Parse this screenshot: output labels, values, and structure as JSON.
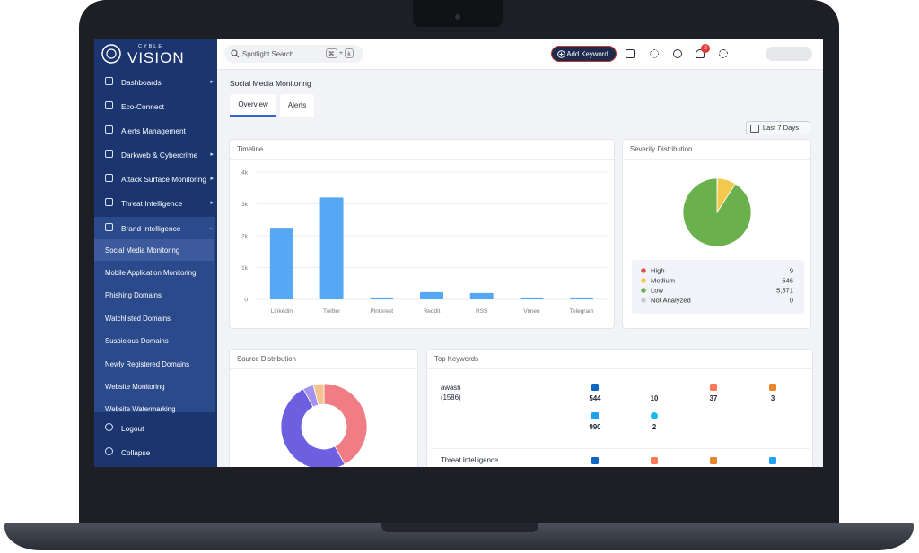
{
  "sidebar": {
    "brand_top": "CYBLE",
    "brand": "VISION",
    "menu": [
      {
        "label": "Dashboards",
        "submenu": true
      },
      {
        "label": "Eco-Connect",
        "submenu": false
      },
      {
        "label": "Alerts Management",
        "submenu": false
      },
      {
        "label": "Darkweb & Cybercrime",
        "submenu": true
      },
      {
        "label": "Attack Surface Monitoring",
        "submenu": true
      },
      {
        "label": "Threat Intelligence",
        "submenu": true
      },
      {
        "label": "Brand Intelligence",
        "submenu": true
      }
    ],
    "submenu": [
      "Social Media Monitoring",
      "Mobile Application Monitoring",
      "Phishing Domains",
      "Watchlisted Domains",
      "Suspicious Domains",
      "Newly Registered Domains",
      "Website Monitoring",
      "Website Watermarking"
    ],
    "footer": [
      "Logout",
      "Collapse"
    ]
  },
  "topbar": {
    "search": "Spotlight Search",
    "shortcut": [
      "⌘",
      "+",
      "k"
    ],
    "add_keyword": "Add Keyword",
    "notifications": 2
  },
  "page": {
    "title": "Social Media Monitoring",
    "tabs": [
      "Overview",
      "Alerts"
    ],
    "date_filter": "Last 7 Days"
  },
  "chart_data": [
    {
      "type": "bar",
      "title": "Timeline",
      "categories": [
        "Linkedin",
        "Twitter",
        "Pinterest",
        "Reddit",
        "RSS",
        "Vimeo",
        "Telegram"
      ],
      "values": [
        2250,
        3200,
        60,
        230,
        200,
        60,
        60
      ],
      "color": "#56a8f5",
      "ylim": [
        0,
        4000
      ],
      "yticks": [
        0,
        {
          "value": 1000,
          "label": "1k"
        },
        {
          "value": 2000,
          "label": "2k"
        },
        {
          "value": 3000,
          "label": "3k"
        },
        {
          "value": 4000,
          "label": "4k"
        }
      ],
      "grid": true
    },
    {
      "type": "pie",
      "title": "Severity Distribution",
      "categories": [
        "High",
        "Medium",
        "Low",
        "Not Analyzed"
      ],
      "values": [
        9,
        546,
        5571,
        0
      ],
      "value_labels": [
        "9",
        "546",
        "5,571",
        "0"
      ],
      "colors": [
        "#d9534f",
        "#f2c94c",
        "#6ab04c",
        "#c8ccd4"
      ]
    },
    {
      "type": "donut",
      "title": "Source Distribution",
      "categories": [
        null,
        null,
        null,
        null
      ],
      "values": [
        42,
        50,
        4,
        4
      ],
      "colors": [
        "#ef7d83",
        "#6c5fe0",
        "#a393ec",
        "#f3c48d"
      ]
    }
  ],
  "top_keywords": {
    "title": "Top Keywords",
    "rows": [
      {
        "keyword": "awash",
        "count": "(1586)",
        "sources": [
          544,
          10,
          37,
          3,
          990,
          2
        ]
      },
      {
        "keyword": "Threat Intelligence"
      }
    ]
  }
}
